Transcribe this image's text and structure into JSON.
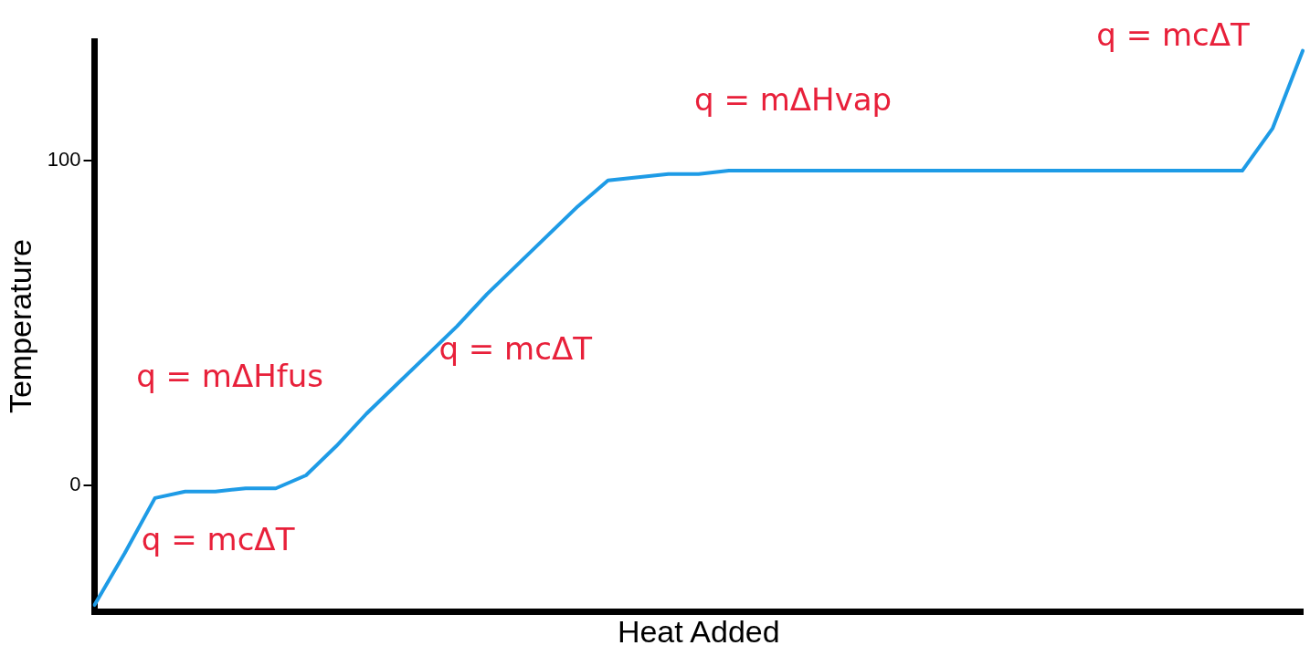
{
  "chart_data": {
    "type": "line",
    "xlabel": "Heat Added",
    "ylabel": "Temperature",
    "categories": [
      null,
      null,
      null,
      null,
      null,
      null,
      null,
      null,
      null,
      null,
      null,
      null,
      null,
      null,
      null,
      null,
      null,
      null,
      null,
      null,
      null,
      null,
      null,
      null,
      null,
      null,
      null,
      null,
      null,
      null,
      null,
      null,
      null,
      null,
      null,
      null,
      null,
      null,
      null,
      null,
      null
    ],
    "series": [
      {
        "color": "#1e9be6",
        "values": [
          -37,
          -21,
          -4,
          -2,
          -2,
          -1,
          -1,
          3,
          12,
          22,
          31,
          40,
          49,
          59,
          68,
          77,
          86,
          94,
          95,
          96,
          96,
          97,
          97,
          97,
          97,
          97,
          97,
          97,
          97,
          97,
          97,
          97,
          97,
          97,
          97,
          97,
          97,
          97,
          97,
          110,
          134
        ]
      }
    ],
    "ylim": [
      -39,
      137
    ],
    "yticks": [
      0,
      100
    ],
    "tick_labels": "y",
    "grid": false,
    "legend": false,
    "marker": "none",
    "line_style": "solid",
    "annotations": [
      "q = mcΔT",
      "q = mΔHfus",
      "q = mcΔT",
      "q = mΔHvap",
      "q = mcΔT"
    ]
  }
}
